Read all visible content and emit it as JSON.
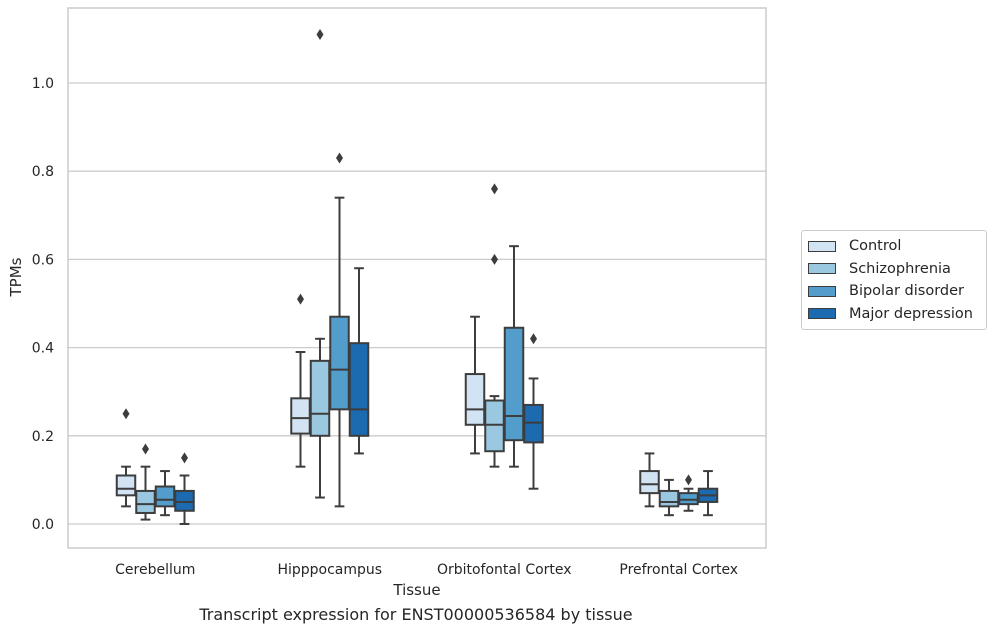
{
  "chart_data": {
    "type": "box",
    "title": "Transcript expression for ENST00000536584 by tissue",
    "xlabel": "Tissue",
    "ylabel": "TPMs",
    "ylim": [
      -0.055,
      1.17
    ],
    "yticks": [
      "0.0",
      "0.2",
      "0.4",
      "0.6",
      "0.8",
      "1.0"
    ],
    "grid": true,
    "legend_position": "right",
    "categories": [
      "Cerebellum",
      "Hipppocampus",
      "Orbitofontal Cortex",
      "Prefrontal Cortex"
    ],
    "series": [
      {
        "name": "Control",
        "color": "#d2e3f3",
        "boxes": [
          {
            "whislo": 0.04,
            "q1": 0.065,
            "med": 0.08,
            "q3": 0.11,
            "whishi": 0.13,
            "fliers": [
              0.25
            ]
          },
          {
            "whislo": 0.13,
            "q1": 0.205,
            "med": 0.24,
            "q3": 0.285,
            "whishi": 0.39,
            "fliers": [
              0.51
            ]
          },
          {
            "whislo": 0.16,
            "q1": 0.225,
            "med": 0.26,
            "q3": 0.34,
            "whishi": 0.47,
            "fliers": []
          },
          {
            "whislo": 0.04,
            "q1": 0.07,
            "med": 0.09,
            "q3": 0.12,
            "whishi": 0.16,
            "fliers": []
          }
        ]
      },
      {
        "name": "Schizophrenia",
        "color": "#9ac8e0",
        "boxes": [
          {
            "whislo": 0.01,
            "q1": 0.025,
            "med": 0.045,
            "q3": 0.075,
            "whishi": 0.13,
            "fliers": [
              0.17
            ]
          },
          {
            "whislo": 0.06,
            "q1": 0.2,
            "med": 0.25,
            "q3": 0.37,
            "whishi": 0.42,
            "fliers": [
              1.11
            ]
          },
          {
            "whislo": 0.13,
            "q1": 0.165,
            "med": 0.225,
            "q3": 0.28,
            "whishi": 0.29,
            "fliers": [
              0.6,
              0.76
            ]
          },
          {
            "whislo": 0.02,
            "q1": 0.04,
            "med": 0.05,
            "q3": 0.075,
            "whishi": 0.1,
            "fliers": []
          }
        ]
      },
      {
        "name": "Bipolar disorder",
        "color": "#529dcc",
        "boxes": [
          {
            "whislo": 0.02,
            "q1": 0.04,
            "med": 0.055,
            "q3": 0.085,
            "whishi": 0.12,
            "fliers": []
          },
          {
            "whislo": 0.04,
            "q1": 0.26,
            "med": 0.35,
            "q3": 0.47,
            "whishi": 0.74,
            "fliers": [
              0.83
            ]
          },
          {
            "whislo": 0.13,
            "q1": 0.19,
            "med": 0.245,
            "q3": 0.445,
            "whishi": 0.63,
            "fliers": []
          },
          {
            "whislo": 0.03,
            "q1": 0.045,
            "med": 0.055,
            "q3": 0.07,
            "whishi": 0.08,
            "fliers": [
              0.1
            ]
          }
        ]
      },
      {
        "name": "Major depression",
        "color": "#1c6aaf",
        "boxes": [
          {
            "whislo": 0.0,
            "q1": 0.03,
            "med": 0.05,
            "q3": 0.075,
            "whishi": 0.11,
            "fliers": [
              0.15
            ]
          },
          {
            "whislo": 0.16,
            "q1": 0.2,
            "med": 0.26,
            "q3": 0.41,
            "whishi": 0.58,
            "fliers": []
          },
          {
            "whislo": 0.08,
            "q1": 0.185,
            "med": 0.23,
            "q3": 0.27,
            "whishi": 0.33,
            "fliers": [
              0.42
            ]
          },
          {
            "whislo": 0.02,
            "q1": 0.05,
            "med": 0.065,
            "q3": 0.08,
            "whishi": 0.12,
            "fliers": []
          }
        ]
      }
    ]
  }
}
